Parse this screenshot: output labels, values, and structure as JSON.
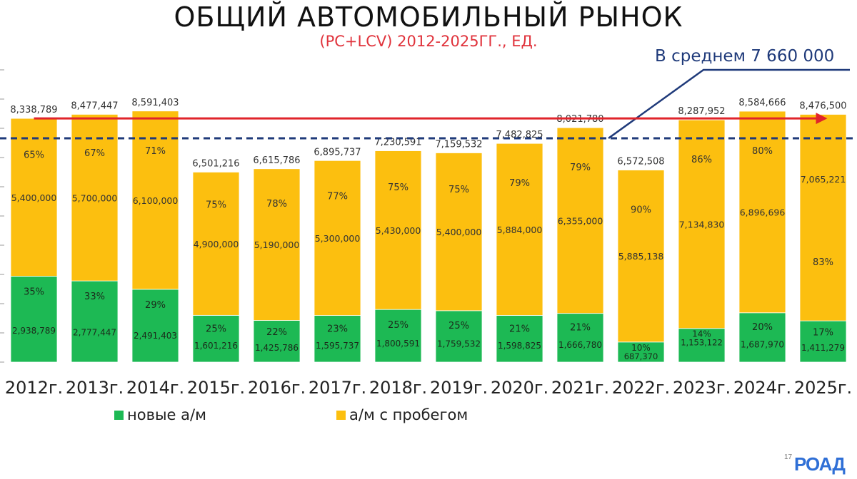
{
  "header": {
    "title": "ОБЩИЙ АВТОМОБИЛЬНЫЙ РЫНОК",
    "subtitle": "(PC+LCV) 2012-2025ГГ., ЕД."
  },
  "average": {
    "label": "В среднем 7 660 000",
    "value": 7660000
  },
  "legend": {
    "new": {
      "label": "новые а/м",
      "color": "#1db954"
    },
    "used": {
      "label": "а/м с пробегом",
      "color": "#fcbf0f"
    }
  },
  "footer": {
    "page": "17",
    "logo": "РОАД"
  },
  "colors": {
    "new": "#1db954",
    "used": "#fcbf0f",
    "trend": "#e0242b",
    "average": "#1f3a7a"
  },
  "chart_data": {
    "type": "bar",
    "stacked": true,
    "categories": [
      "2012г.",
      "2013г.",
      "2014г.",
      "2015г.",
      "2016г.",
      "2017г.",
      "2018г.",
      "2019г.",
      "2020г.",
      "2021г.",
      "2022г.",
      "2023г.",
      "2024г.",
      "2025г."
    ],
    "ylim": [
      0,
      10000000
    ],
    "totals": [
      "8,338,789",
      "8,477,447",
      "8,591,403",
      "6,501,216",
      "6,615,786",
      "6,895,737",
      "7,230,591",
      "7,159,532",
      "7,482,825",
      "8,021,780",
      "6,572,508",
      "8,287,952",
      "8,584,666",
      "8,476,500"
    ],
    "series": [
      {
        "name": "новые а/м",
        "values": [
          2938789,
          2777447,
          2491403,
          1601216,
          1425786,
          1595737,
          1800591,
          1759532,
          1598825,
          1666780,
          687370,
          1153122,
          1687970,
          1411279
        ],
        "labels": [
          "2,938,789",
          "2,777,447",
          "2,491,403",
          "1,601,216",
          "1,425,786",
          "1,595,737",
          "1,800,591",
          "1,759,532",
          "1,598,825",
          "1,666,780",
          "687,370",
          "1,153,122",
          "1,687,970",
          "1,411,279"
        ],
        "percents": [
          "35%",
          "33%",
          "29%",
          "25%",
          "22%",
          "23%",
          "25%",
          "25%",
          "21%",
          "21%",
          "10%",
          "14%",
          "20%",
          "17%"
        ]
      },
      {
        "name": "а/м с пробегом",
        "values": [
          5400000,
          5700000,
          6100000,
          4900000,
          5190000,
          5300000,
          5430000,
          5400000,
          5884000,
          6355000,
          5885138,
          7134830,
          6896696,
          7065221
        ],
        "labels": [
          "5,400,000",
          "5,700,000",
          "6,100,000",
          "4,900,000",
          "5,190,000",
          "5,300,000",
          "5,430,000",
          "5,400,000",
          "5,884,000",
          "6,355,000",
          "5,885,138",
          "7,134,830",
          "6,896,696",
          "7,065,221"
        ],
        "percents": [
          "65%",
          "67%",
          "71%",
          "75%",
          "78%",
          "77%",
          "75%",
          "75%",
          "79%",
          "79%",
          "90%",
          "86%",
          "80%",
          "83%"
        ]
      }
    ],
    "annotations": {
      "average_line": 7660000,
      "trend_arrow": {
        "from": "2012г.",
        "to": "2025г.",
        "value": 8338789
      }
    }
  }
}
